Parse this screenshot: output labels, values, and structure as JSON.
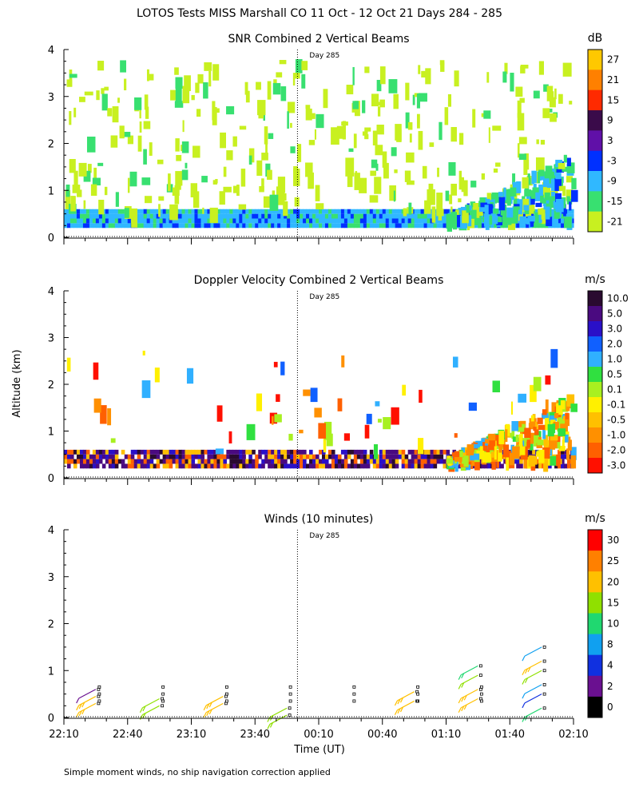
{
  "page_title": "LOTOS Tests MISS Marshall CO  11 Oct - 12 Oct 21 Days 284 - 285",
  "ylabel": "Altitude (km)",
  "xlabel": "Time (UT)",
  "footnote": "Simple moment winds, no ship navigation correction applied",
  "time_ticks": [
    "22:10",
    "22:40",
    "23:10",
    "23:40",
    "00:10",
    "00:40",
    "01:10",
    "01:40",
    "02:10"
  ],
  "day_marker_label": "Day 285",
  "chart_data": [
    {
      "type": "heatmap",
      "title": "SNR Combined 2 Vertical Beams",
      "xlabel": "Time (UT)",
      "ylabel": "Altitude (km)",
      "x_range_minutes_after_22_10": [
        0,
        240
      ],
      "ylim": [
        0,
        4
      ],
      "y_ticks": [
        "0",
        "1",
        "2",
        "3",
        "4"
      ],
      "day_boundary_minutes": 110,
      "colorbar": {
        "unit": "dB",
        "labels": [
          "27",
          "21",
          "15",
          "9",
          "3",
          "-3",
          "-9",
          "-15",
          "-21"
        ],
        "colors": [
          "#ffc800",
          "#ff8000",
          "#ff2a00",
          "#3a0b4a",
          "#6010a8",
          "#0030ff",
          "#30b8ff",
          "#38e070",
          "#c8f020"
        ]
      },
      "features": [
        {
          "name": "near-ground layer",
          "alt_km": [
            0.2,
            0.6
          ],
          "snr_db": [
            -9,
            -15
          ]
        },
        {
          "name": "sparse echoes",
          "alt_km": [
            0.6,
            3.8
          ],
          "snr_db": [
            -21,
            -15
          ]
        },
        {
          "name": "late growing layer",
          "time_range": [
            "01:10",
            "02:10"
          ],
          "alt_km": [
            0.3,
            2.0
          ],
          "snr_db": [
            -15,
            -3
          ]
        }
      ]
    },
    {
      "type": "heatmap",
      "title": "Doppler Velocity Combined 2 Vertical Beams",
      "xlabel": "Time (UT)",
      "ylabel": "Altitude (km)",
      "x_range_minutes_after_22_10": [
        0,
        240
      ],
      "ylim": [
        0,
        4
      ],
      "y_ticks": [
        "0",
        "1",
        "2",
        "3",
        "4"
      ],
      "day_boundary_minutes": 110,
      "colorbar": {
        "unit": "m/s",
        "labels": [
          "10.0",
          "5.0",
          "3.0",
          "2.0",
          "1.0",
          "0.5",
          "0.1",
          "-0.1",
          "-0.5",
          "-1.0",
          "-2.0",
          "-3.0"
        ],
        "colors": [
          "#2a0a30",
          "#4a0a80",
          "#2a10c8",
          "#1060ff",
          "#30b0ff",
          "#30e040",
          "#a8f020",
          "#fff000",
          "#ffc000",
          "#ff9000",
          "#ff6000",
          "#ff1000"
        ]
      },
      "features": [
        {
          "name": "near-ground layer",
          "alt_km": [
            0.2,
            0.6
          ],
          "velocity_ms": [
            10.0,
            2.0
          ]
        },
        {
          "name": "late updraft region",
          "time_range": [
            "01:10",
            "02:10"
          ],
          "alt_km": [
            0.5,
            1.8
          ],
          "velocity_ms": [
            -2.0,
            0.5
          ]
        }
      ]
    },
    {
      "type": "scatter",
      "title": "Winds (10 minutes)",
      "xlabel": "Time (UT)",
      "ylabel": "Altitude (km)",
      "x_range_minutes_after_22_10": [
        0,
        240
      ],
      "ylim": [
        0,
        4
      ],
      "y_ticks": [
        "0",
        "1",
        "2",
        "3",
        "4"
      ],
      "day_boundary_minutes": 110,
      "colorbar": {
        "unit": "m/s",
        "labels": [
          "30",
          "25",
          "20",
          "15",
          "10",
          "8",
          "4",
          "2",
          "0"
        ],
        "colors": [
          "#ff0000",
          "#ff8000",
          "#ffc000",
          "#90e000",
          "#20d870",
          "#10a0f0",
          "#1030e0",
          "#6a1090",
          "#000000"
        ]
      },
      "barbs": [
        {
          "t_min": 15,
          "alt_km": 0.3,
          "speed_ms": 24
        },
        {
          "t_min": 15,
          "alt_km": 0.45,
          "speed_ms": 24
        },
        {
          "t_min": 15,
          "alt_km": 0.6,
          "speed_ms": 2
        },
        {
          "t_min": 45,
          "alt_km": 0.25,
          "speed_ms": 17
        },
        {
          "t_min": 45,
          "alt_km": 0.4,
          "speed_ms": 15
        },
        {
          "t_min": 75,
          "alt_km": 0.3,
          "speed_ms": 24
        },
        {
          "t_min": 75,
          "alt_km": 0.45,
          "speed_ms": 24
        },
        {
          "t_min": 105,
          "alt_km": 0.05,
          "speed_ms": 15
        },
        {
          "t_min": 105,
          "alt_km": 0.2,
          "speed_ms": 17
        },
        {
          "t_min": 165,
          "alt_km": 0.35,
          "speed_ms": 24
        },
        {
          "t_min": 165,
          "alt_km": 0.55,
          "speed_ms": 24
        },
        {
          "t_min": 195,
          "alt_km": 0.4,
          "speed_ms": 24
        },
        {
          "t_min": 195,
          "alt_km": 0.6,
          "speed_ms": 24
        },
        {
          "t_min": 195,
          "alt_km": 0.9,
          "speed_ms": 15
        },
        {
          "t_min": 195,
          "alt_km": 1.1,
          "speed_ms": 13
        },
        {
          "t_min": 225,
          "alt_km": 0.2,
          "speed_ms": 13
        },
        {
          "t_min": 225,
          "alt_km": 0.5,
          "speed_ms": 4
        },
        {
          "t_min": 225,
          "alt_km": 0.7,
          "speed_ms": 8
        },
        {
          "t_min": 225,
          "alt_km": 1.0,
          "speed_ms": 18
        },
        {
          "t_min": 225,
          "alt_km": 1.2,
          "speed_ms": 22
        },
        {
          "t_min": 225,
          "alt_km": 1.5,
          "speed_ms": 8
        }
      ]
    }
  ]
}
